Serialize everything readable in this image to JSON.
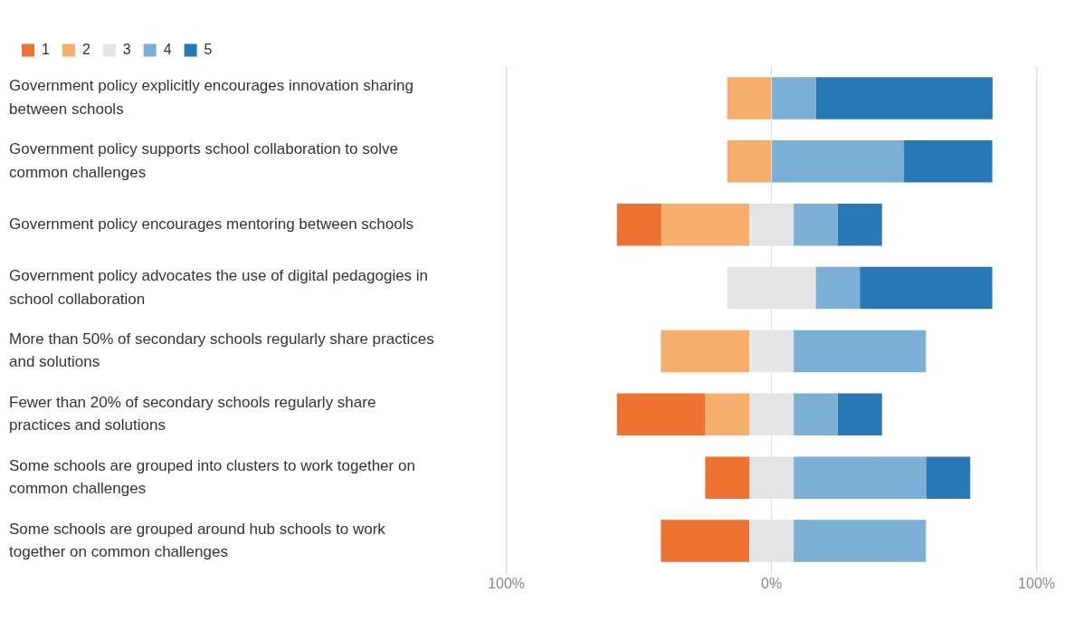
{
  "chart_data": {
    "type": "bar",
    "orientation": "horizontal",
    "stacked": true,
    "legend": "top left",
    "grid": "x",
    "categories": [
      "Government policy explicitly encourages innovation sharing between schools",
      "Government policy supports school collaboration to solve common challenges",
      "Government policy encourages mentoring between schools",
      "Government policy advocates the use of digital pedagogies in school collaboration",
      "More than 50% of secondary schools regularly share practices and solutions",
      "Fewer than 20% of secondary schools regularly share practices and solutions",
      "Some schools are grouped into clusters to work together on common challenges",
      "Some schools are grouped around hub schools to work together on common challenges"
    ],
    "xlim": [
      -100,
      100
    ],
    "xticks": [
      {
        "value": -100,
        "label": "100%"
      },
      {
        "value": 0,
        "label": "0%"
      },
      {
        "value": 100,
        "label": "100%"
      }
    ],
    "series": [
      {
        "name": "1",
        "color": "#ed7130",
        "values": [
          null,
          null,
          16.7,
          null,
          null,
          33.3,
          16.7,
          33.3
        ],
        "base": [
          null,
          null,
          -58.3,
          null,
          null,
          -58.3,
          -25,
          -41.7
        ]
      },
      {
        "name": "2",
        "color": "#f5ae6b",
        "values": [
          16.7,
          16.7,
          33.3,
          null,
          33.3,
          16.7,
          null,
          null
        ],
        "base": [
          -16.7,
          -16.7,
          -41.7,
          null,
          -41.7,
          -25,
          null,
          null
        ]
      },
      {
        "name": "3",
        "color": "#e5e5e5",
        "values": [
          null,
          null,
          16.7,
          33.3,
          16.7,
          16.7,
          16.7,
          16.7
        ],
        "base": [
          null,
          null,
          -8.3,
          -16.7,
          -8.3,
          -8.3,
          -8.3,
          -8.3
        ]
      },
      {
        "name": "4",
        "color": "#7bafd4",
        "values": [
          16.7,
          50,
          16.7,
          16.7,
          50,
          16.7,
          50,
          50
        ],
        "base": [
          0,
          0,
          8.3,
          16.7,
          8.3,
          8.3,
          8.3,
          8.3
        ]
      },
      {
        "name": "5",
        "color": "#2878b5",
        "values": [
          66.7,
          33.3,
          16.7,
          50,
          null,
          16.7,
          16.7,
          null
        ],
        "base": [
          16.7,
          50,
          25,
          33.3,
          null,
          25,
          58.3,
          null
        ]
      }
    ]
  }
}
